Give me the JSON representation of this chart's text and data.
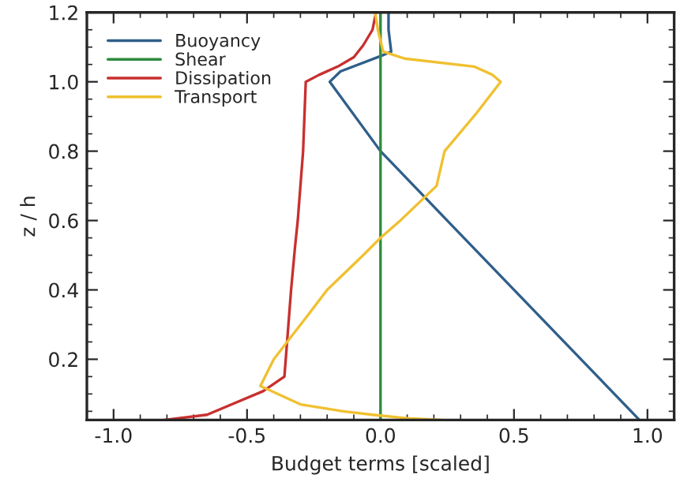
{
  "chart_data": {
    "type": "line",
    "xlabel": "Budget terms [scaled]",
    "ylabel": "z / h",
    "xlim": [
      -1.1,
      1.1
    ],
    "xticks": [
      {
        "value": -1,
        "label": "-1.0"
      },
      -0.5,
      {
        "value": 0,
        "label": "0.0"
      },
      0.5,
      {
        "value": 1,
        "label": "1.0"
      }
    ],
    "ylim": [
      0.025,
      1.2
    ],
    "yticks": [
      0.2,
      0.4,
      0.6,
      0.8,
      {
        "value": 1,
        "label": "1.0"
      },
      1.2
    ],
    "legend": "top left",
    "grid": false,
    "line_style": "solid",
    "marker": "none",
    "series": [
      {
        "name": "Buoyancy",
        "color": "#2f5f8a",
        "x": [
          0.97,
          0.25,
          0.0,
          -0.19,
          -0.15,
          0.0,
          0.04,
          0.03,
          0.03
        ],
        "values": [
          0.025,
          0.6,
          0.8,
          1.0,
          1.03,
          1.074,
          1.087,
          1.15,
          1.2
        ]
      },
      {
        "name": "Shear",
        "color": "#2e8b3e",
        "x": [
          0.0,
          0.0
        ],
        "values": [
          0.025,
          1.2
        ]
      },
      {
        "name": "Dissipation",
        "color": "#c8302f",
        "x": [
          -0.81,
          -0.65,
          -0.44,
          -0.36,
          -0.35,
          -0.335,
          -0.32,
          -0.31,
          -0.29,
          -0.28,
          -0.23,
          -0.16,
          -0.1,
          -0.065,
          -0.03,
          -0.017
        ],
        "values": [
          0.025,
          0.04,
          0.108,
          0.15,
          0.25,
          0.4,
          0.526,
          0.6,
          0.8,
          1.0,
          1.02,
          1.044,
          1.071,
          1.105,
          1.15,
          1.2
        ]
      },
      {
        "name": "Transport",
        "color": "#f0c030",
        "x": [
          0.23,
          0.1,
          -0.03,
          -0.14,
          -0.3,
          -0.45,
          -0.4,
          -0.35,
          -0.28,
          -0.2,
          -0.065,
          0.0,
          0.077,
          0.21,
          0.24,
          0.36,
          0.45,
          0.42,
          0.35,
          0.09,
          0.01,
          -0.01,
          -0.02
        ],
        "values": [
          0.025,
          0.03,
          0.04,
          0.05,
          0.07,
          0.123,
          0.2,
          0.25,
          0.319,
          0.4,
          0.5,
          0.55,
          0.602,
          0.7,
          0.8,
          0.91,
          1.0,
          1.02,
          1.044,
          1.067,
          1.087,
          1.15,
          1.2
        ]
      }
    ]
  }
}
